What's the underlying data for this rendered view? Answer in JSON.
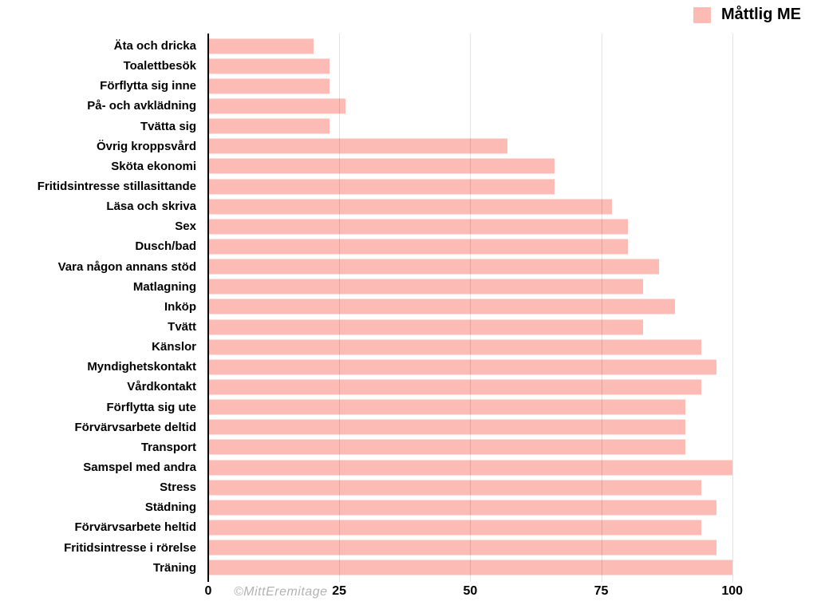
{
  "legend": {
    "label": "Måttlig ME"
  },
  "watermark": "©MittEremitage",
  "colors": {
    "bar": "#fdbbb6",
    "gridline": "rgba(0,0,0,0.11)",
    "axis": "#000000",
    "tick_text": "#000000",
    "watermark_text": "#b3b3b3"
  },
  "chart_data": {
    "type": "bar",
    "orientation": "horizontal",
    "title": "",
    "xlabel": "",
    "ylabel": "",
    "xlim": [
      0,
      100
    ],
    "xticks": [
      0,
      25,
      50,
      75,
      100
    ],
    "grid": true,
    "legend_position": "top-right",
    "series_name": "Måttlig ME",
    "categories": [
      "Äta och dricka",
      "Toalettbesök",
      "Förflytta sig inne",
      "På- och avklädning",
      "Tvätta sig",
      "Övrig kroppsvård",
      "Sköta ekonomi",
      "Fritidsintresse stillasittande",
      "Läsa och skriva",
      "Sex",
      "Dusch/bad",
      "Vara någon annans stöd",
      "Matlagning",
      "Inköp",
      "Tvätt",
      "Känslor",
      "Myndighetskontakt",
      "Vårdkontakt",
      "Förflytta sig ute",
      "Förvärvsarbete deltid",
      "Transport",
      "Samspel med andra",
      "Stress",
      "Städning",
      "Förvärvsarbete heltid",
      "Fritidsintresse i rörelse",
      "Träning"
    ],
    "values": [
      20,
      23,
      23,
      26,
      23,
      57,
      66,
      66,
      77,
      80,
      80,
      86,
      83,
      89,
      83,
      94,
      97,
      94,
      91,
      91,
      91,
      100,
      94,
      97,
      94,
      97,
      100
    ]
  }
}
